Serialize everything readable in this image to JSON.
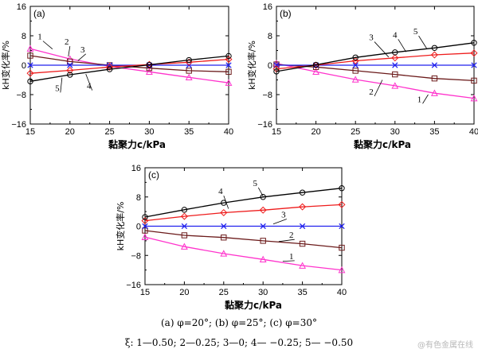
{
  "figure": {
    "x_label": "黏聚力c/kPa",
    "y_label": "kH变化率/%",
    "caption_line1": "(a) φ=20°; (b) φ=25°; (c) φ=30°",
    "caption_line2": "ξ: 1—0.50; 2—0.25; 3—0; 4— −0.25; 5— −0.50",
    "watermark": "@有色金属在线"
  },
  "chart_data": [
    {
      "type": "line",
      "panel_label": "(a)",
      "x": [
        15,
        20,
        25,
        30,
        35,
        40
      ],
      "xlim": [
        15,
        40
      ],
      "ylim": [
        -16,
        16
      ],
      "xticks": [
        15,
        20,
        25,
        30,
        35,
        40
      ],
      "yticks": [
        -16,
        -8,
        0,
        8,
        16
      ],
      "grid": false,
      "series": [
        {
          "name": "1",
          "marker": "triangle",
          "color": "#ff33cc",
          "values": [
            4.5,
            1.7,
            -0.3,
            -1.8,
            -3.3,
            -4.8
          ]
        },
        {
          "name": "2",
          "marker": "square",
          "color": "#6b1a1a",
          "values": [
            2.6,
            1.0,
            0.0,
            -0.8,
            -1.5,
            -1.8
          ]
        },
        {
          "name": "3",
          "marker": "x",
          "color": "#2020ee",
          "values": [
            0,
            0,
            0,
            0,
            0,
            0
          ]
        },
        {
          "name": "4",
          "marker": "diamond",
          "color": "#ee1c1c",
          "values": [
            -2.2,
            -1.4,
            -0.5,
            0.2,
            0.8,
            1.6
          ]
        },
        {
          "name": "5",
          "marker": "circle",
          "color": "#000000",
          "values": [
            -4.4,
            -2.6,
            -1.1,
            0.1,
            1.4,
            2.5
          ]
        }
      ]
    },
    {
      "type": "line",
      "panel_label": "(b)",
      "x": [
        15,
        20,
        25,
        30,
        35,
        40
      ],
      "xlim": [
        15,
        40
      ],
      "ylim": [
        -16,
        16
      ],
      "xticks": [
        15,
        20,
        25,
        30,
        35,
        40
      ],
      "yticks": [
        -16,
        -8,
        0,
        8,
        16
      ],
      "grid": false,
      "series": [
        {
          "name": "1",
          "marker": "triangle",
          "color": "#ff33cc",
          "values": [
            0.5,
            -1.8,
            -3.9,
            -5.6,
            -7.6,
            -9.0
          ]
        },
        {
          "name": "2",
          "marker": "square",
          "color": "#6b1a1a",
          "values": [
            0.2,
            -0.5,
            -1.5,
            -2.5,
            -3.6,
            -4.2
          ]
        },
        {
          "name": "3",
          "marker": "x",
          "color": "#2020ee",
          "values": [
            0,
            0,
            0,
            0,
            0,
            0
          ]
        },
        {
          "name": "4",
          "marker": "diamond",
          "color": "#ee1c1c",
          "values": [
            -1.0,
            0.0,
            1.2,
            2.0,
            2.8,
            3.3
          ]
        },
        {
          "name": "5",
          "marker": "circle",
          "color": "#000000",
          "values": [
            -1.7,
            0.1,
            2.1,
            3.5,
            4.7,
            6.1
          ]
        }
      ]
    },
    {
      "type": "line",
      "panel_label": "(c)",
      "x": [
        15,
        20,
        25,
        30,
        35,
        40
      ],
      "xlim": [
        15,
        40
      ],
      "ylim": [
        -16,
        16
      ],
      "xticks": [
        15,
        20,
        25,
        30,
        35,
        40
      ],
      "yticks": [
        -16,
        -8,
        0,
        8,
        16
      ],
      "grid": false,
      "series": [
        {
          "name": "1",
          "marker": "triangle",
          "color": "#ff33cc",
          "values": [
            -3.0,
            -5.6,
            -7.5,
            -9.1,
            -10.8,
            -12.0
          ]
        },
        {
          "name": "2",
          "marker": "square",
          "color": "#6b1a1a",
          "values": [
            -1.2,
            -2.5,
            -3.1,
            -4.0,
            -4.8,
            -5.9
          ]
        },
        {
          "name": "3",
          "marker": "x",
          "color": "#2020ee",
          "values": [
            0,
            0,
            0,
            0,
            0,
            0
          ]
        },
        {
          "name": "4",
          "marker": "diamond",
          "color": "#ee1c1c",
          "values": [
            1.5,
            2.7,
            3.7,
            4.4,
            5.3,
            5.9
          ]
        },
        {
          "name": "5",
          "marker": "circle",
          "color": "#000000",
          "values": [
            2.5,
            4.5,
            6.4,
            8.0,
            9.2,
            10.4
          ]
        }
      ]
    }
  ]
}
